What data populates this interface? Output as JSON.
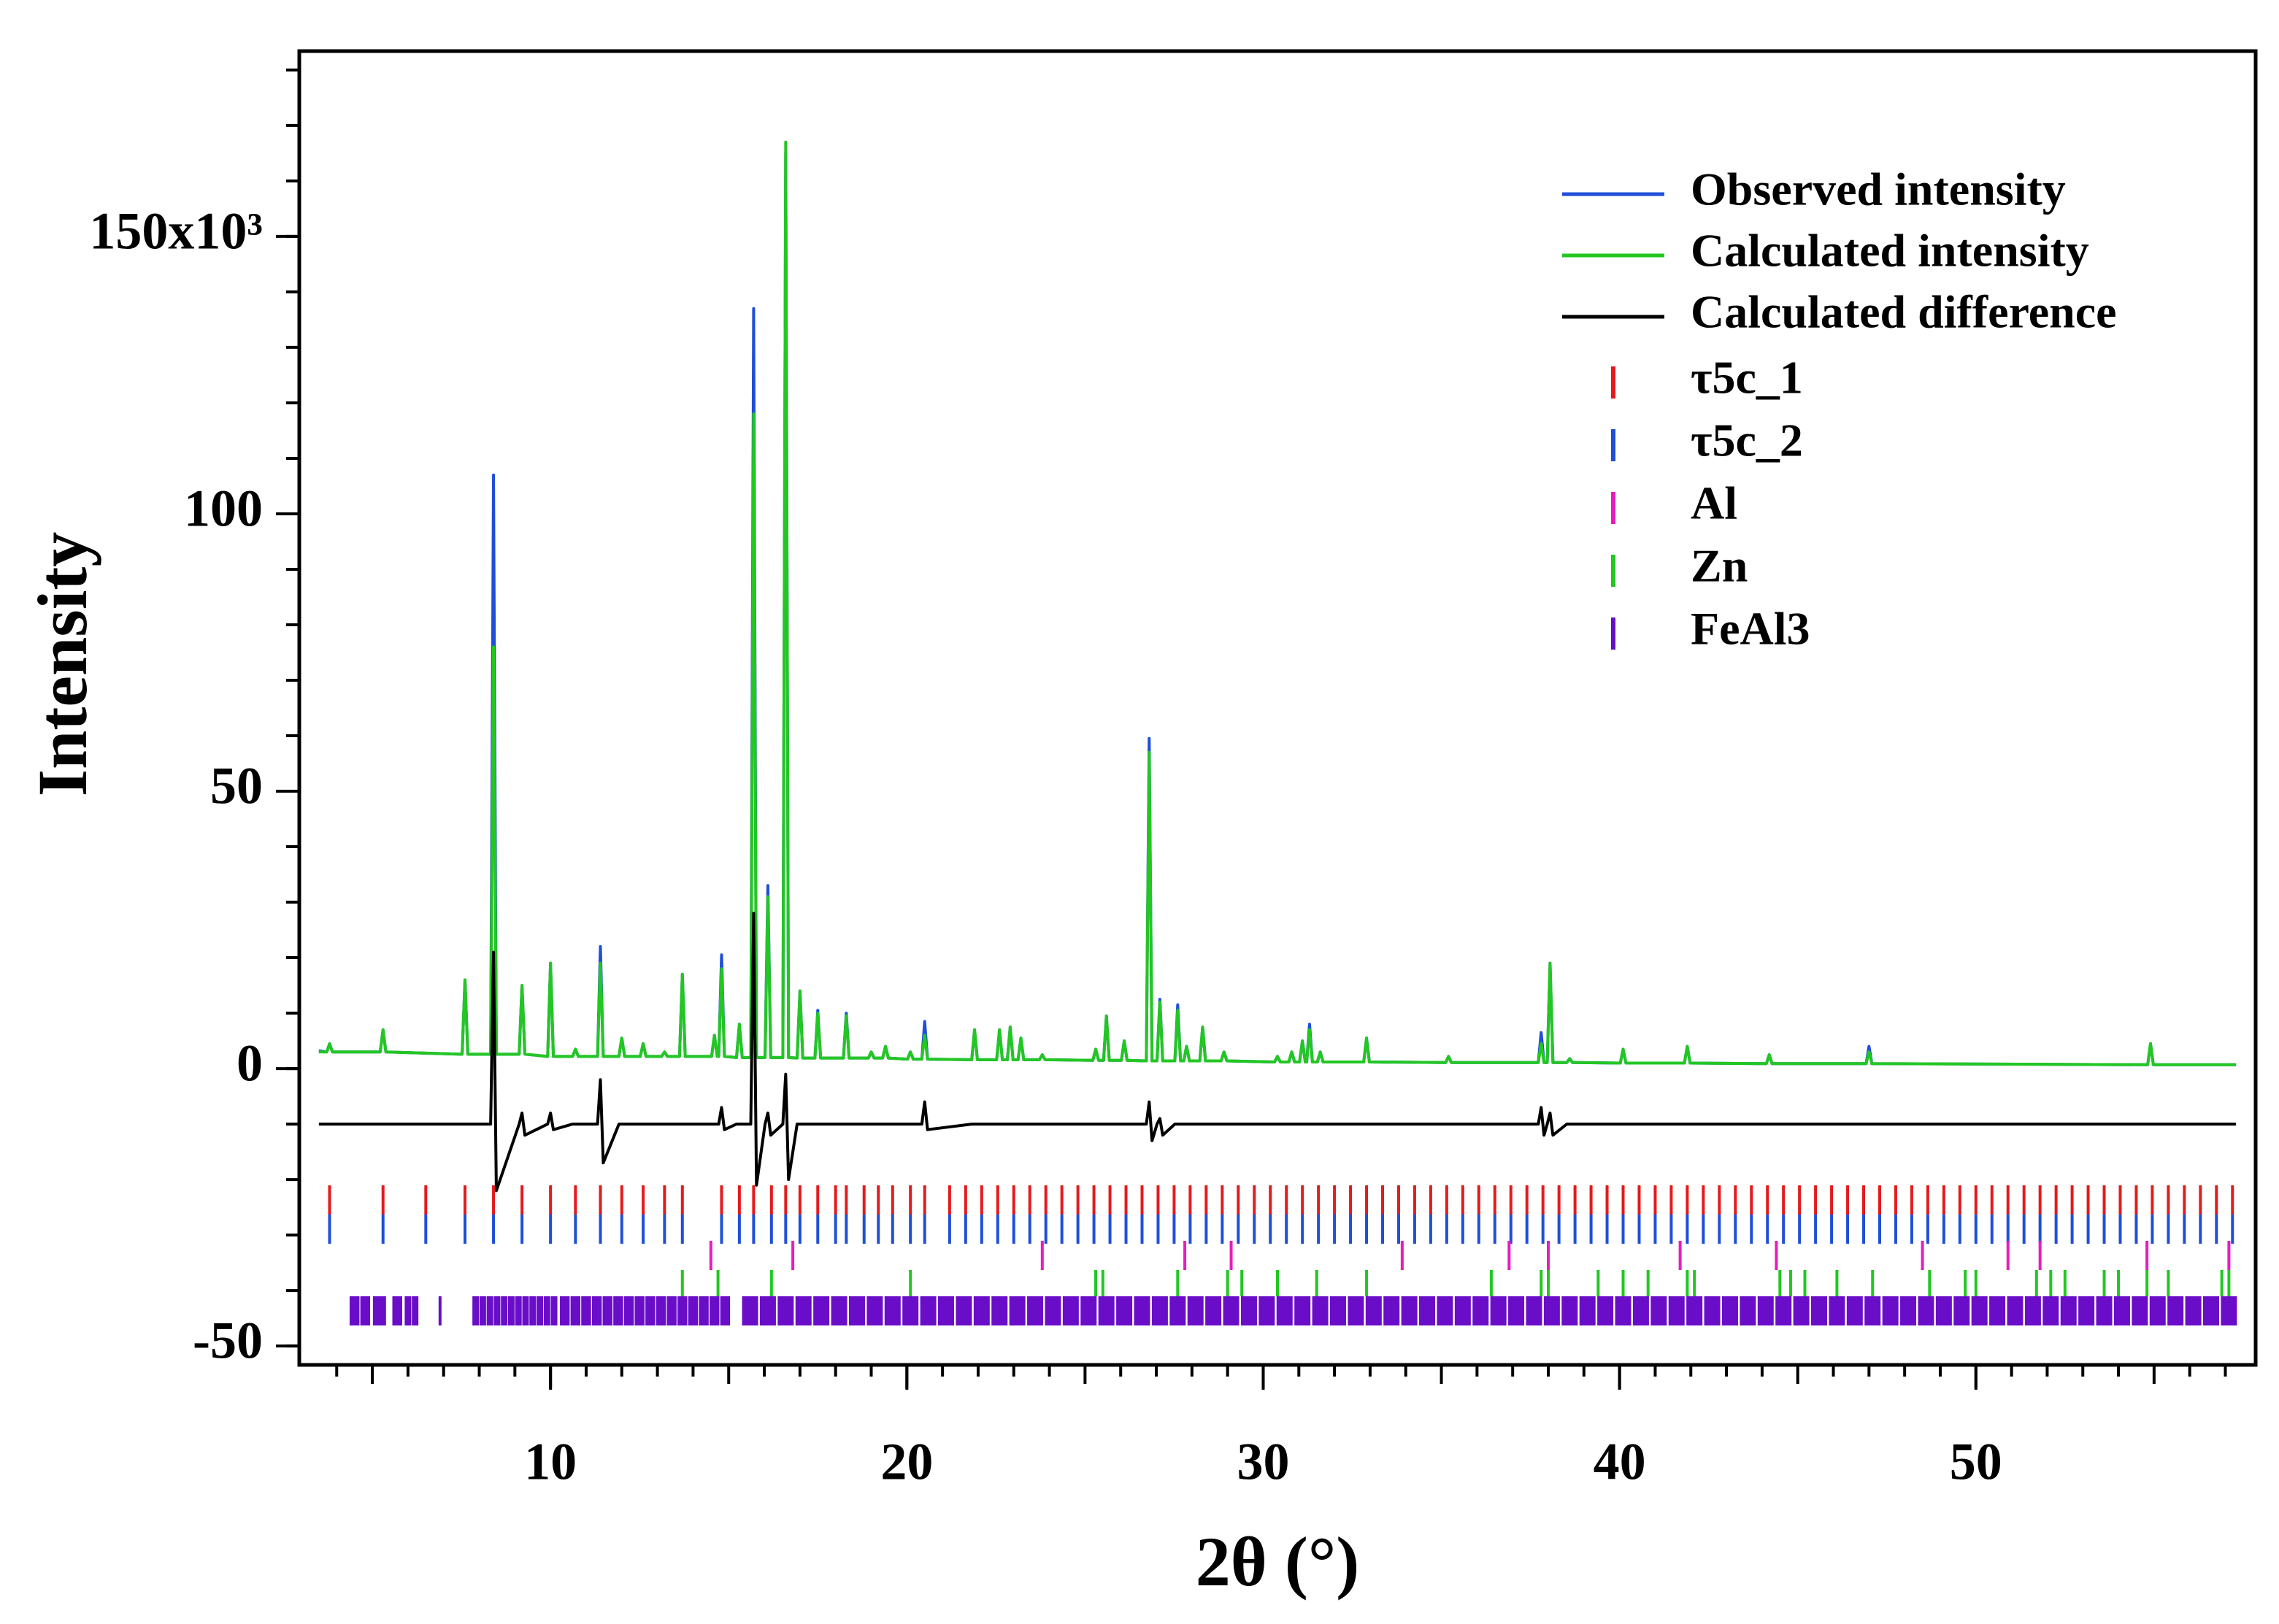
{
  "chart_data": {
    "type": "line",
    "xlabel": "2θ (°)",
    "ylabel": "Intensity",
    "xlim": [
      2.95,
      57.85
    ],
    "ylim": [
      -53.4,
      183.4
    ],
    "xticks": [
      10,
      20,
      30,
      40,
      50
    ],
    "xticks_minor": [
      4,
      5,
      6,
      7,
      8,
      9,
      10,
      11,
      12,
      13,
      14,
      15,
      16,
      17,
      18,
      19,
      20,
      21,
      22,
      23,
      24,
      25,
      26,
      27,
      28,
      29,
      30,
      31,
      32,
      33,
      34,
      35,
      36,
      37,
      38,
      39,
      40,
      41,
      42,
      43,
      44,
      45,
      46,
      47,
      48,
      49,
      50,
      51,
      52,
      53,
      54,
      55,
      56,
      57
    ],
    "yticks": [
      -50,
      0,
      50,
      100,
      {
        "value": 150,
        "label": "150x10³"
      }
    ],
    "yticks_minor": [
      -50,
      -40,
      -30,
      -20,
      -10,
      0,
      10,
      20,
      30,
      40,
      50,
      60,
      70,
      80,
      90,
      100,
      110,
      120,
      130,
      140,
      150,
      160,
      170,
      180
    ],
    "x": [
      3.5,
      3.72,
      3.8,
      3.88,
      5.22,
      5.3,
      5.38,
      7.52,
      7.6,
      7.68,
      8.32,
      8.4,
      8.48,
      9.12,
      9.2,
      9.28,
      9.92,
      10.0,
      10.08,
      10.62,
      10.7,
      10.78,
      11.32,
      11.4,
      11.48,
      11.92,
      12.0,
      12.08,
      12.52,
      12.6,
      12.68,
      13.12,
      13.2,
      13.28,
      13.62,
      13.7,
      13.78,
      14.52,
      14.6,
      14.68,
      14.72,
      14.8,
      14.88,
      15.22,
      15.3,
      15.38,
      15.62,
      15.7,
      15.78,
      16.02,
      16.1,
      16.18,
      16.52,
      16.6,
      16.68,
      16.92,
      17.0,
      17.08,
      17.42,
      17.5,
      17.58,
      18.22,
      18.3,
      18.38,
      18.92,
      19.0,
      19.08,
      19.32,
      19.4,
      19.48,
      20.02,
      20.1,
      20.18,
      20.42,
      20.5,
      20.58,
      21.82,
      21.9,
      21.98,
      22.52,
      22.6,
      22.68,
      22.82,
      22.9,
      22.98,
      23.12,
      23.2,
      23.28,
      23.72,
      23.8,
      23.88,
      25.22,
      25.3,
      25.38,
      25.52,
      25.6,
      25.68,
      26.02,
      26.1,
      26.18,
      26.72,
      26.8,
      26.88,
      27.02,
      27.1,
      27.18,
      27.52,
      27.6,
      27.68,
      27.77,
      27.85,
      27.93,
      28.22,
      28.3,
      28.38,
      28.82,
      28.9,
      28.98,
      30.32,
      30.4,
      30.48,
      30.72,
      30.8,
      30.88,
      31.02,
      31.1,
      31.18,
      31.22,
      31.3,
      31.38,
      31.52,
      31.6,
      31.68,
      32.82,
      32.9,
      32.98,
      35.12,
      35.2,
      35.28,
      37.72,
      37.8,
      37.88,
      37.97,
      38.05,
      38.13,
      38.52,
      38.6,
      38.68,
      40.02,
      40.1,
      40.18,
      41.82,
      41.9,
      41.98,
      44.12,
      44.2,
      44.28,
      46.92,
      47.0,
      47.08,
      54.82,
      54.9,
      54.98,
      57.3
    ],
    "series": [
      {
        "name": "Observed intensity",
        "color": "#1f4fd8",
        "values": [
          3.2,
          3,
          4.5,
          3,
          3,
          7,
          3,
          2.6,
          16,
          2.6,
          2.6,
          107,
          2.6,
          2.6,
          15,
          2.6,
          2.2,
          19,
          2.2,
          2.2,
          3.5,
          2.2,
          2.2,
          22,
          2.2,
          2.2,
          5.5,
          2.2,
          2.2,
          4.5,
          2.2,
          2.2,
          3,
          2.2,
          2.2,
          17,
          2.2,
          2.2,
          6,
          2.2,
          2.2,
          20.5,
          2.2,
          2,
          8,
          2,
          2,
          137,
          2,
          2,
          33,
          2,
          2,
          165,
          2,
          1.9,
          14,
          1.9,
          1.9,
          10.5,
          1.9,
          1.9,
          10,
          1.9,
          1.9,
          3,
          1.9,
          1.9,
          4,
          1.9,
          1.7,
          3,
          1.7,
          1.7,
          8.5,
          1.7,
          1.6,
          7,
          1.6,
          1.6,
          7,
          1.6,
          1.6,
          7.5,
          1.6,
          1.6,
          5.5,
          1.6,
          1.6,
          2.5,
          1.6,
          1.5,
          3.5,
          1.5,
          1.5,
          9.5,
          1.5,
          1.5,
          5,
          1.5,
          1.4,
          59.5,
          1.4,
          1.4,
          12.5,
          1.4,
          1.4,
          11.5,
          1.4,
          1.4,
          4,
          1.4,
          1.4,
          7.5,
          1.4,
          1.4,
          3,
          1.4,
          1.2,
          2.2,
          1.2,
          1.2,
          3,
          1.2,
          1.2,
          5,
          1.2,
          1.2,
          8,
          1.2,
          1.2,
          3,
          1.2,
          1.2,
          5.5,
          1.2,
          1.1,
          2.2,
          1.1,
          1.1,
          6.5,
          1.1,
          1.1,
          19,
          1.1,
          1.1,
          1.8,
          1.1,
          1,
          3.5,
          1,
          1,
          4,
          1,
          0.9,
          2.5,
          0.9,
          0.9,
          4,
          0.9,
          0.7,
          4.5,
          0.7,
          0.7
        ]
      },
      {
        "name": "Calculated intensity",
        "color": "#22c722",
        "values": [
          3.0,
          3,
          4.5,
          3,
          3,
          7,
          3,
          2.6,
          16,
          2.6,
          2.6,
          76,
          2.6,
          2.6,
          15,
          2.6,
          2.2,
          19,
          2.2,
          2.2,
          3.5,
          2.2,
          2.2,
          19,
          2.2,
          2.2,
          5.5,
          2.2,
          2.2,
          4.5,
          2.2,
          2.2,
          3,
          2.2,
          2.2,
          17,
          2.2,
          2.2,
          6,
          2.2,
          2.2,
          18,
          2.2,
          2,
          8,
          2,
          2,
          118,
          2,
          2,
          31,
          2,
          2,
          167,
          2,
          1.9,
          14,
          1.9,
          1.9,
          10,
          1.9,
          1.9,
          9.5,
          1.9,
          1.9,
          3,
          1.9,
          1.9,
          4,
          1.9,
          1.7,
          3,
          1.7,
          1.7,
          6,
          1.7,
          1.6,
          7,
          1.6,
          1.6,
          7,
          1.6,
          1.6,
          7.5,
          1.6,
          1.6,
          5.5,
          1.6,
          1.6,
          2.5,
          1.6,
          1.5,
          3.5,
          1.5,
          1.5,
          9.5,
          1.5,
          1.5,
          5,
          1.5,
          1.4,
          57,
          1.4,
          1.4,
          12,
          1.4,
          1.4,
          10.5,
          1.4,
          1.4,
          4,
          1.4,
          1.4,
          7.5,
          1.4,
          1.4,
          3,
          1.4,
          1.2,
          2.2,
          1.2,
          1.2,
          3,
          1.2,
          1.2,
          5,
          1.2,
          1.2,
          7,
          1.2,
          1.2,
          3,
          1.2,
          1.2,
          5.5,
          1.2,
          1.1,
          2.2,
          1.1,
          1.1,
          4.5,
          1.1,
          1.1,
          19,
          1.1,
          1.1,
          1.8,
          1.1,
          1,
          3.5,
          1,
          1,
          4,
          1,
          0.9,
          2.5,
          0.9,
          0.9,
          3,
          0.9,
          0.7,
          4.5,
          0.7,
          0.7
        ]
      },
      {
        "name": "Calculated difference",
        "color": "#000000",
        "values": [
          -10,
          -10,
          -10,
          -10,
          -10,
          -10,
          -10,
          -10,
          -10,
          -10,
          -10,
          21,
          -22,
          -10,
          -8,
          -12,
          -10,
          -8,
          -11,
          -10,
          -10,
          -10,
          -10,
          -2,
          -17,
          -10,
          -10,
          -10,
          -10,
          -10,
          -10,
          -10,
          -10,
          -10,
          -10,
          -10,
          -10,
          -10,
          -10,
          -10,
          -10,
          -7,
          -11,
          -10,
          -10,
          -10,
          -10,
          28,
          -21,
          -10,
          -8,
          -12,
          -10,
          -1,
          -20,
          -10,
          -10,
          -10,
          -10,
          -10,
          -10,
          -10,
          -10,
          -10,
          -10,
          -10,
          -10,
          -10,
          -10,
          -10,
          -10,
          -10,
          -10,
          -10,
          -6,
          -11,
          -10,
          -10,
          -10,
          -10,
          -10,
          -10,
          -10,
          -10,
          -10,
          -10,
          -10,
          -10,
          -10,
          -10,
          -10,
          -10,
          -10,
          -10,
          -10,
          -10,
          -10,
          -10,
          -10,
          -10,
          -10,
          -6,
          -13,
          -10,
          -9,
          -12,
          -10,
          -10,
          -10,
          -10,
          -10,
          -10,
          -10,
          -10,
          -10,
          -10,
          -10,
          -10,
          -10,
          -10,
          -10,
          -10,
          -10,
          -10,
          -10,
          -10,
          -10,
          -10,
          -10,
          -10,
          -10,
          -10,
          -10,
          -10,
          -10,
          -10,
          -10,
          -10,
          -10,
          -10,
          -7,
          -12,
          -10,
          -8,
          -12,
          -10,
          -10,
          -10,
          -10,
          -10,
          -10,
          -10,
          -10,
          -10,
          -10,
          -10,
          -10,
          -10,
          -10,
          -10,
          -10,
          -10,
          -10,
          -10
        ]
      }
    ],
    "reflections": [
      {
        "name": "τ5c_1",
        "color": "#e41a1c",
        "positions": [
          3.8,
          5.3,
          6.5,
          7.6,
          8.4,
          9.2,
          10.0,
          10.7,
          11.4,
          12.0,
          12.6,
          13.2,
          13.7,
          14.8,
          15.3,
          15.7,
          16.2,
          16.6,
          17.0,
          17.5,
          18.0,
          18.3,
          18.8,
          19.2,
          19.6,
          20.1,
          20.5,
          21.2,
          21.65,
          22.1,
          22.55,
          23.0,
          23.45,
          23.9,
          24.35,
          24.8,
          25.25,
          25.7,
          26.15,
          26.6,
          27.05,
          27.5,
          27.95,
          28.4,
          28.85,
          29.3,
          29.75,
          30.2,
          30.65,
          31.1,
          31.55,
          32.0,
          32.45,
          32.9,
          33.35,
          33.8,
          34.25,
          34.7,
          35.15,
          35.6,
          36.05,
          36.5,
          36.95,
          37.4,
          37.85,
          38.3,
          38.75,
          39.2,
          39.65,
          40.1,
          40.55,
          41.0,
          41.45,
          41.9,
          42.35,
          42.8,
          43.25,
          43.7,
          44.15,
          44.6,
          45.05,
          45.5,
          45.95,
          46.4,
          46.85,
          47.3,
          47.75,
          48.2,
          48.65,
          49.1,
          49.55,
          50.0,
          50.45,
          50.9,
          51.35,
          51.8,
          52.25,
          52.7,
          53.15,
          53.6,
          54.05,
          54.5,
          54.95,
          55.4,
          55.85,
          56.3,
          56.75,
          57.2
        ]
      },
      {
        "name": "τ5c_2",
        "color": "#1f4fd8",
        "positions": [
          3.8,
          5.3,
          6.5,
          7.6,
          8.4,
          9.2,
          10.0,
          10.7,
          11.4,
          12.0,
          12.6,
          13.2,
          13.7,
          14.8,
          15.3,
          15.7,
          16.2,
          16.6,
          17.0,
          17.5,
          18.0,
          18.3,
          18.8,
          19.2,
          19.6,
          20.1,
          20.5,
          21.2,
          21.65,
          22.1,
          22.55,
          23.0,
          23.45,
          23.9,
          24.35,
          24.8,
          25.25,
          25.7,
          26.15,
          26.6,
          27.05,
          27.5,
          27.95,
          28.4,
          28.85,
          29.3,
          29.75,
          30.2,
          30.65,
          31.1,
          31.55,
          32.0,
          32.45,
          32.9,
          33.35,
          33.8,
          34.25,
          34.7,
          35.15,
          35.6,
          36.05,
          36.5,
          36.95,
          37.4,
          37.85,
          38.3,
          38.75,
          39.2,
          39.65,
          40.1,
          40.55,
          41.0,
          41.45,
          41.9,
          42.35,
          42.8,
          43.25,
          43.7,
          44.15,
          44.6,
          45.05,
          45.5,
          45.95,
          46.4,
          46.85,
          47.3,
          47.75,
          48.2,
          48.65,
          49.1,
          49.55,
          50.0,
          50.45,
          50.9,
          51.35,
          51.8,
          52.25,
          52.7,
          53.15,
          53.6,
          54.05,
          54.5,
          54.95,
          55.4,
          55.85,
          56.3,
          56.75,
          57.2
        ]
      },
      {
        "name": "Al",
        "color": "#e81cbe",
        "positions": [
          14.5,
          16.8,
          23.8,
          27.8,
          29.1,
          33.9,
          36.9,
          38.0,
          41.7,
          44.4,
          48.5,
          50.9,
          51.8,
          54.8,
          57.1
        ]
      },
      {
        "name": "Zn",
        "color": "#22c722",
        "positions": [
          13.7,
          14.7,
          16.2,
          20.1,
          25.3,
          25.5,
          27.6,
          29.0,
          29.4,
          30.4,
          31.5,
          32.9,
          36.4,
          37.8,
          38.0,
          39.4,
          40.1,
          40.8,
          41.9,
          42.1,
          44.5,
          44.8,
          45.2,
          46.1,
          47.1,
          48.7,
          49.7,
          50.0,
          51.7,
          52.1,
          52.5,
          53.6,
          54.0,
          54.8,
          55.4,
          56.9,
          57.1
        ]
      },
      {
        "name": "FeAl3",
        "color": "#6a0dc8",
        "positions": [
          4.5,
          4.8,
          5.2,
          5.7,
          6.0,
          6.2,
          6.9,
          7.9,
          8.1,
          8.3,
          8.5,
          8.7,
          8.9,
          9.1,
          9.3,
          9.5,
          9.7,
          9.9,
          10.1,
          10.4,
          10.7,
          11.0,
          11.3,
          11.6,
          11.9,
          12.2,
          12.5,
          12.8,
          13.1,
          13.4,
          13.7,
          14.0,
          14.3,
          14.6,
          14.9,
          15.6,
          16.1,
          16.6,
          17.1,
          17.6,
          18.1,
          18.6,
          19.1,
          19.6,
          20.1,
          20.6,
          21.1,
          21.6,
          22.1,
          22.6,
          23.1,
          23.6,
          24.1,
          24.6,
          25.1,
          25.6,
          26.1,
          26.6,
          27.1,
          27.6,
          28.1,
          28.6,
          29.1,
          29.6,
          30.1,
          30.6,
          31.1,
          31.6,
          32.1,
          32.6,
          33.1,
          33.6,
          34.1,
          34.6,
          35.1,
          35.6,
          36.1,
          36.6,
          37.1,
          37.6,
          38.1,
          38.6,
          39.1,
          39.6,
          40.1,
          40.6,
          41.1,
          41.6,
          42.1,
          42.6,
          43.1,
          43.6,
          44.1,
          44.6,
          45.1,
          45.6,
          46.1,
          46.6,
          47.1,
          47.6,
          48.1,
          48.6,
          49.1,
          49.6,
          50.1,
          50.6,
          51.1,
          51.6,
          52.1,
          52.6,
          53.1,
          53.6,
          54.1,
          54.6,
          55.1,
          55.6,
          56.1,
          56.6,
          57.1
        ]
      }
    ],
    "legend": "upper right"
  }
}
